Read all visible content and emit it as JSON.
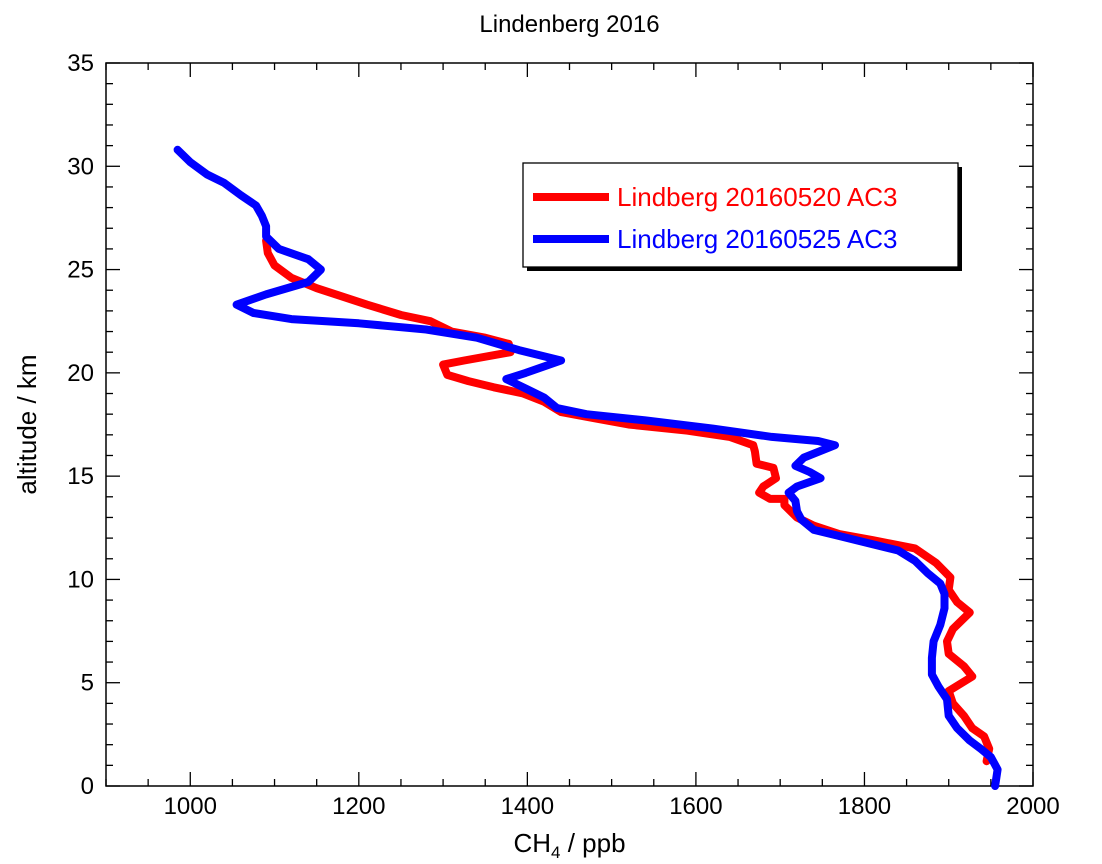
{
  "chart_data": {
    "type": "line",
    "title": "Lindenberg 2016",
    "xlabel": {
      "base": "CH",
      "sub": "4",
      "rest": " / ppb"
    },
    "ylabel": "altitude / km",
    "xlim": [
      900,
      2000
    ],
    "ylim": [
      0,
      35
    ],
    "x_ticks": [
      1000,
      1200,
      1400,
      1600,
      1800,
      2000
    ],
    "y_ticks": [
      0,
      5,
      10,
      15,
      20,
      25,
      30,
      35
    ],
    "x_minor_step": 50,
    "y_minor_step": 1,
    "grid": false,
    "legend_position": "top-right",
    "series": [
      {
        "name": "Lindberg 20160520 AC3",
        "color": "#ff0000",
        "points": [
          [
            1945,
            1.2
          ],
          [
            1948,
            1.8
          ],
          [
            1942,
            2.4
          ],
          [
            1928,
            2.8
          ],
          [
            1918,
            3.4
          ],
          [
            1905,
            4.0
          ],
          [
            1900,
            4.6
          ],
          [
            1928,
            5.3
          ],
          [
            1918,
            5.8
          ],
          [
            1900,
            6.4
          ],
          [
            1898,
            7.0
          ],
          [
            1905,
            7.6
          ],
          [
            1925,
            8.4
          ],
          [
            1910,
            8.9
          ],
          [
            1900,
            9.5
          ],
          [
            1902,
            10.1
          ],
          [
            1885,
            10.8
          ],
          [
            1860,
            11.5
          ],
          [
            1810,
            11.9
          ],
          [
            1770,
            12.2
          ],
          [
            1740,
            12.6
          ],
          [
            1720,
            13.0
          ],
          [
            1705,
            13.6
          ],
          [
            1705,
            13.9
          ],
          [
            1688,
            13.9
          ],
          [
            1675,
            14.2
          ],
          [
            1680,
            14.5
          ],
          [
            1695,
            14.9
          ],
          [
            1692,
            15.4
          ],
          [
            1672,
            15.6
          ],
          [
            1670,
            16.2
          ],
          [
            1668,
            16.5
          ],
          [
            1640,
            16.9
          ],
          [
            1590,
            17.2
          ],
          [
            1520,
            17.5
          ],
          [
            1480,
            17.8
          ],
          [
            1440,
            18.1
          ],
          [
            1420,
            18.6
          ],
          [
            1395,
            19.0
          ],
          [
            1360,
            19.3
          ],
          [
            1330,
            19.6
          ],
          [
            1305,
            19.9
          ],
          [
            1300,
            20.4
          ],
          [
            1325,
            20.6
          ],
          [
            1380,
            21.0
          ],
          [
            1378,
            21.4
          ],
          [
            1350,
            21.7
          ],
          [
            1310,
            22.0
          ],
          [
            1285,
            22.5
          ],
          [
            1250,
            22.8
          ],
          [
            1210,
            23.3
          ],
          [
            1180,
            23.7
          ],
          [
            1150,
            24.1
          ],
          [
            1120,
            24.6
          ],
          [
            1100,
            25.2
          ],
          [
            1092,
            25.8
          ],
          [
            1090,
            26.4
          ]
        ]
      },
      {
        "name": "Lindberg 20160525 AC3",
        "color": "#0000ff",
        "points": [
          [
            1955,
            0.0
          ],
          [
            1958,
            0.8
          ],
          [
            1950,
            1.4
          ],
          [
            1938,
            1.8
          ],
          [
            1925,
            2.2
          ],
          [
            1910,
            2.8
          ],
          [
            1900,
            3.4
          ],
          [
            1898,
            4.2
          ],
          [
            1888,
            4.8
          ],
          [
            1880,
            5.4
          ],
          [
            1880,
            6.2
          ],
          [
            1882,
            7.0
          ],
          [
            1890,
            7.8
          ],
          [
            1895,
            8.6
          ],
          [
            1895,
            9.3
          ],
          [
            1890,
            9.8
          ],
          [
            1875,
            10.3
          ],
          [
            1860,
            10.9
          ],
          [
            1840,
            11.4
          ],
          [
            1800,
            11.8
          ],
          [
            1770,
            12.1
          ],
          [
            1740,
            12.4
          ],
          [
            1725,
            12.9
          ],
          [
            1720,
            13.3
          ],
          [
            1718,
            13.8
          ],
          [
            1710,
            14.2
          ],
          [
            1720,
            14.5
          ],
          [
            1748,
            14.9
          ],
          [
            1735,
            15.2
          ],
          [
            1718,
            15.5
          ],
          [
            1728,
            15.9
          ],
          [
            1765,
            16.5
          ],
          [
            1745,
            16.7
          ],
          [
            1690,
            16.9
          ],
          [
            1620,
            17.3
          ],
          [
            1540,
            17.7
          ],
          [
            1470,
            18.0
          ],
          [
            1435,
            18.3
          ],
          [
            1420,
            18.8
          ],
          [
            1400,
            19.2
          ],
          [
            1375,
            19.7
          ],
          [
            1398,
            20.0
          ],
          [
            1440,
            20.6
          ],
          [
            1390,
            21.1
          ],
          [
            1340,
            21.7
          ],
          [
            1280,
            22.1
          ],
          [
            1200,
            22.4
          ],
          [
            1120,
            22.6
          ],
          [
            1075,
            22.9
          ],
          [
            1055,
            23.3
          ],
          [
            1090,
            23.8
          ],
          [
            1140,
            24.4
          ],
          [
            1155,
            25.0
          ],
          [
            1140,
            25.5
          ],
          [
            1105,
            26.0
          ],
          [
            1090,
            26.6
          ],
          [
            1090,
            27.1
          ],
          [
            1085,
            27.6
          ],
          [
            1078,
            28.1
          ],
          [
            1060,
            28.6
          ],
          [
            1040,
            29.2
          ],
          [
            1020,
            29.6
          ],
          [
            1000,
            30.2
          ],
          [
            985,
            30.8
          ]
        ]
      }
    ]
  }
}
